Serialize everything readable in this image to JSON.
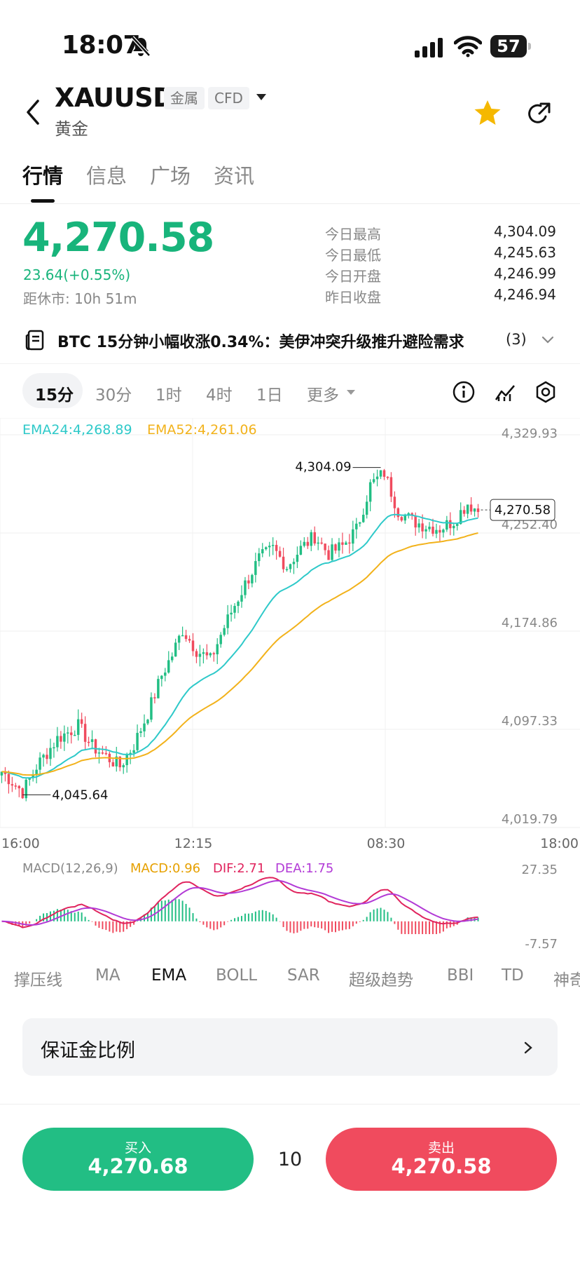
{
  "status": {
    "time": "18:07",
    "battery": "57"
  },
  "header": {
    "symbol": "XAUUSD",
    "tag1": "金属",
    "tag2": "CFD",
    "name": "黄金"
  },
  "tabs": [
    "行情",
    "信息",
    "广场",
    "资讯"
  ],
  "quote": {
    "last": "4,270.58",
    "change": "23.64(+0.55%)",
    "close_countdown": "距休市: 10h 51m",
    "stats": [
      {
        "label": "今日最高",
        "value": "4,304.09"
      },
      {
        "label": "今日最低",
        "value": "4,245.63"
      },
      {
        "label": "今日开盘",
        "value": "4,246.99"
      },
      {
        "label": "昨日收盘",
        "value": "4,246.94"
      }
    ]
  },
  "news": {
    "headline": "BTC 15分钟小幅收涨0.34%：美伊冲突升级推升避险需求",
    "count": "(3)"
  },
  "timeframes": [
    "15分",
    "30分",
    "1时",
    "4时",
    "1日",
    "更多"
  ],
  "indicators": [
    "撑压线",
    "MA",
    "EMA",
    "BOLL",
    "SAR",
    "超级趋势",
    "BBI",
    "TD",
    "神奇"
  ],
  "margin_card": {
    "title": "保证金比例"
  },
  "trade": {
    "buy_label": "买入",
    "buy_price": "4,270.68",
    "sell_label": "卖出",
    "sell_price": "4,270.58",
    "spread": "10"
  },
  "colors": {
    "up": "#22be84",
    "down": "#f04b5e",
    "ema24": "#2ec9c9",
    "ema52": "#f2b21b",
    "macd": "#e6a000",
    "dif": "#e0245e",
    "dea": "#b23ad6"
  },
  "chart_data": {
    "type": "candlestick",
    "legend": {
      "ema24": "EMA24:4,268.89",
      "ema52": "EMA52:4,261.06"
    },
    "y_ticks": [
      "4,329.93",
      "4,252.40",
      "4,174.86",
      "4,097.33",
      "4,019.79"
    ],
    "y_tick_values": [
      4329.93,
      4252.4,
      4174.86,
      4097.33,
      4019.79
    ],
    "x_ticks": [
      "16:00",
      "12:15",
      "08:30",
      "18:00"
    ],
    "high_label": "4,304.09",
    "low_label": "4,045.64",
    "last_label": "4,270.58",
    "ylim": [
      4019.79,
      4329.93
    ],
    "price_keypoints": [
      [
        0,
        4064
      ],
      [
        6,
        4048
      ],
      [
        10,
        4068
      ],
      [
        16,
        4090
      ],
      [
        22,
        4100
      ],
      [
        26,
        4084
      ],
      [
        30,
        4076
      ],
      [
        34,
        4068
      ],
      [
        38,
        4085
      ],
      [
        42,
        4110
      ],
      [
        46,
        4140
      ],
      [
        49,
        4156
      ],
      [
        52,
        4176
      ],
      [
        56,
        4160
      ],
      [
        60,
        4152
      ],
      [
        63,
        4172
      ],
      [
        66,
        4190
      ],
      [
        70,
        4212
      ],
      [
        74,
        4232
      ],
      [
        78,
        4240
      ],
      [
        82,
        4226
      ],
      [
        86,
        4240
      ],
      [
        90,
        4250
      ],
      [
        94,
        4236
      ],
      [
        98,
        4242
      ],
      [
        102,
        4255
      ],
      [
        106,
        4290
      ],
      [
        110,
        4300
      ],
      [
        114,
        4270
      ],
      [
        118,
        4262
      ],
      [
        122,
        4258
      ],
      [
        126,
        4256
      ],
      [
        130,
        4262
      ],
      [
        134,
        4276
      ],
      [
        137,
        4270
      ]
    ],
    "macd": {
      "legend": {
        "title": "MACD(12,26,9)",
        "macd": "MACD:0.96",
        "dif": "DIF:2.71",
        "dea": "DEA:1.75"
      },
      "y_ticks": [
        "27.35",
        "-7.57"
      ],
      "ylim": [
        -7.57,
        27.35
      ]
    }
  }
}
